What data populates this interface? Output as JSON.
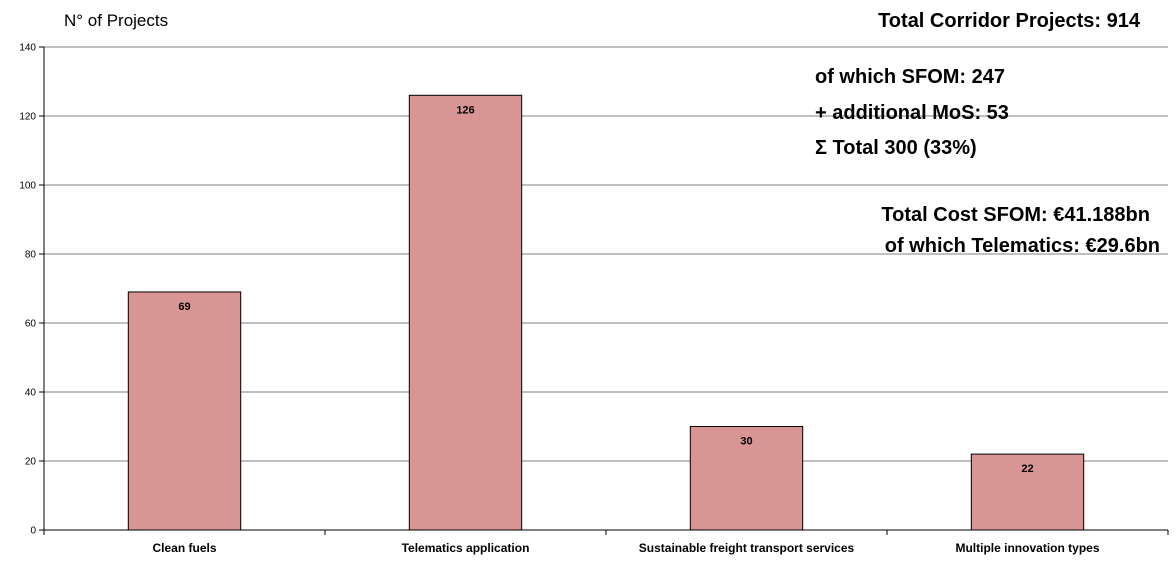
{
  "chart_data": {
    "type": "bar",
    "title": "Total Corridor Projects: 914",
    "xlabel": "",
    "ylabel": "N° of Projects",
    "categories": [
      "Clean fuels",
      "Telematics application",
      "Sustainable freight transport services",
      "Multiple innovation types"
    ],
    "values": [
      69,
      126,
      30,
      22
    ],
    "data_labels": [
      "69",
      "126",
      "30",
      "22"
    ],
    "ylim": [
      0,
      140
    ],
    "yticks": [
      0,
      20,
      40,
      60,
      80,
      100,
      120,
      140
    ],
    "grid": true,
    "legend": "none",
    "annotations": [
      "of which SFOM: 247",
      "+ additional MoS: 53",
      "Σ Total 300 (33%)",
      "Total Cost SFOM: €41.188bn",
      "of which Telematics: €29.6bn"
    ],
    "bar_color": "#D99594",
    "bar_edge_color": "#000000"
  }
}
